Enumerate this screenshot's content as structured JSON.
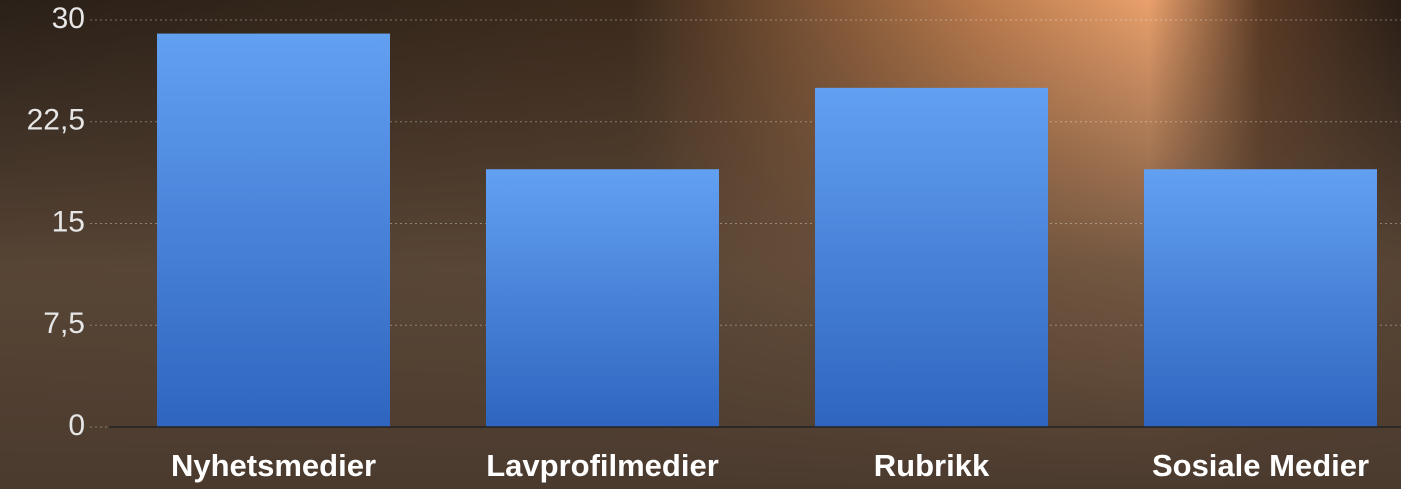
{
  "chart_data": {
    "type": "bar",
    "categories": [
      "Nyhetsmedier",
      "Lavprofilmedier",
      "Rubrikk",
      "Sosiale Medier"
    ],
    "values": [
      29,
      19,
      25,
      19
    ],
    "color": "#4d8ee6",
    "ylim": [
      0,
      30
    ],
    "yticks": [
      0,
      {
        "value": 7.5,
        "label": "7,5"
      },
      15,
      {
        "value": 22.5,
        "label": "22,5"
      },
      30
    ],
    "grid": true
  }
}
